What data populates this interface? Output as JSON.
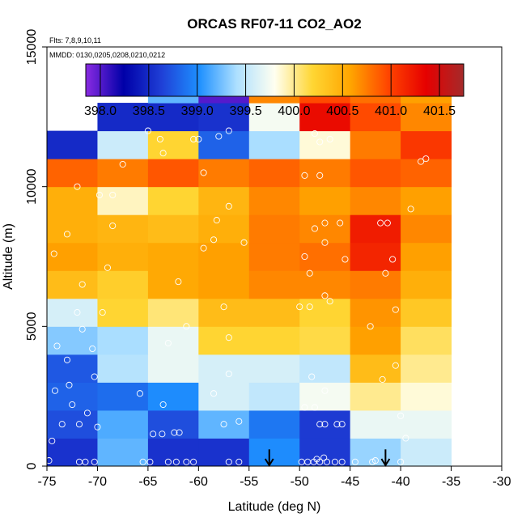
{
  "chart_data": {
    "type": "heatmap",
    "title": "ORCAS RF07-11 CO2_AO2",
    "subtitle_flights": "Flts: 7,8,9,10,11",
    "subtitle_dates": "MMDD: 0130,0205,0208,0210,0212",
    "xlabel": "Latitude (deg N)",
    "ylabel": "Altitude (m)",
    "xlim": [
      -75,
      -30
    ],
    "ylim": [
      0,
      15000
    ],
    "x_ticks": [
      "-75",
      "-70",
      "-65",
      "-60",
      "-55",
      "-50",
      "-45",
      "-40",
      "-35",
      "-30"
    ],
    "x_tick_values": [
      -75,
      -70,
      -65,
      -60,
      -55,
      -50,
      -45,
      -40,
      -35,
      -30
    ],
    "y_ticks": [
      "0",
      "5000",
      "10000",
      "15000"
    ],
    "y_tick_values": [
      0,
      5000,
      10000,
      15000
    ],
    "colorbar": {
      "min": 397.85,
      "max": 401.75,
      "tick_labels": [
        "398.0",
        "398.5",
        "399.0",
        "399.5",
        "400.0",
        "400.5",
        "401.0",
        "401.5"
      ],
      "tick_values": [
        398.0,
        398.5,
        399.0,
        399.5,
        400.0,
        400.5,
        401.0,
        401.5
      ],
      "colors": [
        "#8a2be2",
        "#0000a8",
        "#1f3fd6",
        "#1e90ff",
        "#aee0ff",
        "#fffff0",
        "#ffd633",
        "#ffa500",
        "#ff4500",
        "#e60000",
        "#a52a2a"
      ]
    },
    "lat_bin_edges": [
      -75,
      -70,
      -65,
      -60,
      -55,
      -50,
      -45,
      -40,
      -35
    ],
    "alt_bin_size": 1000,
    "grid_values": [
      [
        398.55,
        399.2,
        398.55,
        398.55,
        399.0,
        398.6,
        399.35,
        399.55
      ],
      [
        398.7,
        399.15,
        398.7,
        399.2,
        398.9,
        398.6,
        399.7,
        399.7
      ],
      [
        398.8,
        398.85,
        399.0,
        399.6,
        399.5,
        399.75,
        400.0,
        399.85
      ],
      [
        398.75,
        399.45,
        399.7,
        399.6,
        399.6,
        399.5,
        400.4,
        400.0
      ],
      [
        399.3,
        399.4,
        399.7,
        400.2,
        400.2,
        400.15,
        400.6,
        400.1
      ],
      [
        399.6,
        400.2,
        400.05,
        400.4,
        400.4,
        400.2,
        400.65,
        400.3
      ],
      [
        400.4,
        400.25,
        400.55,
        400.6,
        400.7,
        400.7,
        400.75,
        400.5
      ],
      [
        400.6,
        400.5,
        400.55,
        400.6,
        400.75,
        400.8,
        401.15,
        400.6
      ],
      [
        400.5,
        400.45,
        400.4,
        400.5,
        400.75,
        400.7,
        401.2,
        400.7
      ],
      [
        400.5,
        399.9,
        400.2,
        400.45,
        400.7,
        400.6,
        400.7,
        400.6
      ],
      [
        400.85,
        400.75,
        400.9,
        400.75,
        400.85,
        400.75,
        400.9,
        400.85
      ],
      [
        398.5,
        399.55,
        400.2,
        398.8,
        399.4,
        399.85,
        400.75,
        401.05
      ],
      [
        null,
        398.5,
        398.5,
        398.55,
        399.75,
        401.3,
        400.95,
        400.7
      ],
      [
        null,
        null,
        399.2,
        398.0,
        400.7,
        400.95,
        400.8,
        400.6
      ]
    ],
    "sample_points": [
      [
        -74.8,
        200
      ],
      [
        -74.5,
        900
      ],
      [
        -73.5,
        1500
      ],
      [
        -72.5,
        2200
      ],
      [
        -71.8,
        1500
      ],
      [
        -71.0,
        1900
      ],
      [
        -74.2,
        2700
      ],
      [
        -72.8,
        2900
      ],
      [
        -70.3,
        3200
      ],
      [
        -74.0,
        4300
      ],
      [
        -73.0,
        3800
      ],
      [
        -71.5,
        4900
      ],
      [
        -70.5,
        4200
      ],
      [
        -72.0,
        5500
      ],
      [
        -69.5,
        5500
      ],
      [
        -74.3,
        7600
      ],
      [
        -71.5,
        6500
      ],
      [
        -69.0,
        7100
      ],
      [
        -73.0,
        8300
      ],
      [
        -68.5,
        8600
      ],
      [
        -72.0,
        10000
      ],
      [
        -69.8,
        9700
      ],
      [
        -68.5,
        9700
      ],
      [
        -67.5,
        10800
      ],
      [
        -71.8,
        150
      ],
      [
        -71.2,
        150
      ],
      [
        -70.3,
        150
      ],
      [
        -70.0,
        1400
      ],
      [
        -65.5,
        150
      ],
      [
        -64.8,
        150
      ],
      [
        -63.0,
        150
      ],
      [
        -62.2,
        150
      ],
      [
        -61.2,
        150
      ],
      [
        -60.5,
        150
      ],
      [
        -57.0,
        150
      ],
      [
        -56.0,
        150
      ],
      [
        -64.5,
        1150
      ],
      [
        -63.6,
        1150
      ],
      [
        -62.4,
        1200
      ],
      [
        -61.9,
        1200
      ],
      [
        -63.5,
        2200
      ],
      [
        -65.8,
        2600
      ],
      [
        -63.0,
        4400
      ],
      [
        -61.2,
        5000
      ],
      [
        -62.0,
        6600
      ],
      [
        -59.5,
        7800
      ],
      [
        -57.0,
        4600
      ],
      [
        -58.5,
        8100
      ],
      [
        -57.0,
        9300
      ],
      [
        -59.5,
        10500
      ],
      [
        -63.5,
        11200
      ],
      [
        -63.8,
        11700
      ],
      [
        -65.0,
        12000
      ],
      [
        -60.5,
        11700
      ],
      [
        -60.0,
        11700
      ],
      [
        -58.0,
        11800
      ],
      [
        -57.0,
        12000
      ],
      [
        -58.5,
        2600
      ],
      [
        -57.5,
        1500
      ],
      [
        -56.0,
        1600
      ],
      [
        -57.0,
        3300
      ],
      [
        -58.2,
        8800
      ],
      [
        -57.5,
        5700
      ],
      [
        -55.5,
        8000
      ],
      [
        -49.8,
        150
      ],
      [
        -49.2,
        150
      ],
      [
        -48.6,
        150
      ],
      [
        -48.0,
        150
      ],
      [
        -47.3,
        150
      ],
      [
        -46.5,
        150
      ],
      [
        -45.8,
        150
      ],
      [
        -47.6,
        300
      ],
      [
        -48.3,
        250
      ],
      [
        -49.5,
        2100
      ],
      [
        -48.5,
        2100
      ],
      [
        -48.0,
        1500
      ],
      [
        -47.5,
        1500
      ],
      [
        -46.3,
        1500
      ],
      [
        -45.8,
        1500
      ],
      [
        -47.5,
        2700
      ],
      [
        -48.8,
        3200
      ],
      [
        -50.0,
        5700
      ],
      [
        -49.0,
        5700
      ],
      [
        -47.5,
        6100
      ],
      [
        -47.0,
        5900
      ],
      [
        -45.5,
        7400
      ],
      [
        -47.5,
        8000
      ],
      [
        -48.5,
        8500
      ],
      [
        -47.5,
        8700
      ],
      [
        -46.0,
        8700
      ],
      [
        -49.5,
        7500
      ],
      [
        -49.0,
        6900
      ],
      [
        -49.5,
        10400
      ],
      [
        -48.0,
        10400
      ],
      [
        -48.5,
        11900
      ],
      [
        -48.0,
        11600
      ],
      [
        -47.0,
        11700
      ],
      [
        -44.5,
        150
      ],
      [
        -42.8,
        150
      ],
      [
        -42.5,
        200
      ],
      [
        -40.0,
        150
      ],
      [
        -39.5,
        1000
      ],
      [
        -40.0,
        1800
      ],
      [
        -41.8,
        3100
      ],
      [
        -40.5,
        3600
      ],
      [
        -41.5,
        6900
      ],
      [
        -40.8,
        7400
      ],
      [
        -40.5,
        5600
      ],
      [
        -43.0,
        5000
      ],
      [
        -42.0,
        8700
      ],
      [
        -41.3,
        8700
      ],
      [
        -39.0,
        9200
      ],
      [
        -38.0,
        10900
      ],
      [
        -37.5,
        11000
      ]
    ],
    "arrows": [
      {
        "lat": -53.0,
        "from": 600,
        "to": 0
      },
      {
        "lat": -41.5,
        "from": 600,
        "to": 0
      }
    ]
  }
}
